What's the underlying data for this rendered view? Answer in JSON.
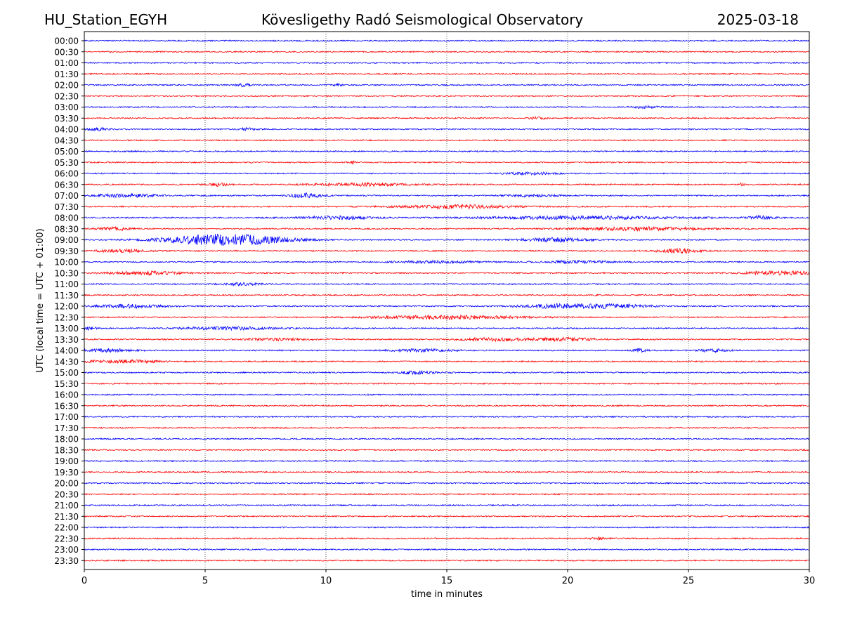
{
  "header": {
    "station": "HU_Station_EGYH",
    "observatory": "Kövesligethy Radó Seismological Observatory",
    "date": "2025-03-18"
  },
  "chart_data": {
    "type": "line",
    "title": "Kövesligethy Radó Seismological Observatory",
    "xlabel": "time in minutes",
    "ylabel": "UTC (local time = UTC + 01:00)",
    "xlim": [
      0,
      30
    ],
    "xticks": [
      0,
      5,
      10,
      15,
      20,
      25,
      30
    ],
    "x_gridlines": [
      5,
      10,
      15,
      20,
      25
    ],
    "grid": "vertical dotted",
    "colors": {
      "even_row": "#0000ff",
      "odd_row": "#ff0000"
    },
    "rows": [
      {
        "label": "00:00",
        "events": []
      },
      {
        "label": "00:30",
        "events": []
      },
      {
        "label": "01:00",
        "events": []
      },
      {
        "label": "01:30",
        "events": []
      },
      {
        "label": "02:00",
        "events": [
          {
            "x": 6.6,
            "amp": 1.6,
            "width": 0.3
          },
          {
            "x": 10.5,
            "amp": 1.3,
            "width": 0.2
          }
        ]
      },
      {
        "label": "02:30",
        "events": []
      },
      {
        "label": "03:00",
        "events": [
          {
            "x": 23.2,
            "amp": 1.4,
            "width": 0.6
          }
        ]
      },
      {
        "label": "03:30",
        "events": [
          {
            "x": 18.7,
            "amp": 1.3,
            "width": 0.4
          }
        ]
      },
      {
        "label": "04:00",
        "events": [
          {
            "x": 0.6,
            "amp": 1.5,
            "width": 0.5
          },
          {
            "x": 6.7,
            "amp": 1.6,
            "width": 0.3
          }
        ]
      },
      {
        "label": "04:30",
        "events": []
      },
      {
        "label": "05:00",
        "events": []
      },
      {
        "label": "05:30",
        "events": [
          {
            "x": 11.1,
            "amp": 2.2,
            "width": 0.1
          }
        ]
      },
      {
        "label": "06:00",
        "events": [
          {
            "x": 18.5,
            "amp": 1.4,
            "width": 1.0
          }
        ]
      },
      {
        "label": "06:30",
        "events": [
          {
            "x": 5.5,
            "amp": 2.0,
            "width": 0.4
          },
          {
            "x": 11.5,
            "amp": 1.8,
            "width": 2.0
          },
          {
            "x": 27.2,
            "amp": 2.0,
            "width": 0.1
          }
        ]
      },
      {
        "label": "07:00",
        "events": [
          {
            "x": 1.8,
            "amp": 2.2,
            "width": 1.4
          },
          {
            "x": 9.2,
            "amp": 3.0,
            "width": 0.7
          },
          {
            "x": 18.5,
            "amp": 1.6,
            "width": 1.0
          }
        ]
      },
      {
        "label": "07:30",
        "events": [
          {
            "x": 15.5,
            "amp": 2.2,
            "width": 2.4
          }
        ]
      },
      {
        "label": "08:00",
        "events": [
          {
            "x": 10.5,
            "amp": 2.2,
            "width": 1.5
          },
          {
            "x": 20.5,
            "amp": 2.0,
            "width": 4.0
          },
          {
            "x": 28.0,
            "amp": 2.2,
            "width": 0.5
          }
        ]
      },
      {
        "label": "08:30",
        "events": [
          {
            "x": 1.2,
            "amp": 2.0,
            "width": 0.7
          },
          {
            "x": 23.0,
            "amp": 2.2,
            "width": 2.5
          }
        ]
      },
      {
        "label": "09:00",
        "events": [
          {
            "x": 5.9,
            "amp": 8.0,
            "width": 2.4
          },
          {
            "x": 19.5,
            "amp": 2.6,
            "width": 1.4
          }
        ]
      },
      {
        "label": "09:30",
        "events": [
          {
            "x": 1.5,
            "amp": 1.8,
            "width": 1.0
          },
          {
            "x": 24.6,
            "amp": 3.0,
            "width": 0.8
          }
        ]
      },
      {
        "label": "10:00",
        "events": [
          {
            "x": 14.5,
            "amp": 1.6,
            "width": 1.5
          },
          {
            "x": 20.5,
            "amp": 1.6,
            "width": 1.5
          }
        ]
      },
      {
        "label": "10:30",
        "events": [
          {
            "x": 2.6,
            "amp": 2.2,
            "width": 1.6
          },
          {
            "x": 28.8,
            "amp": 2.6,
            "width": 1.4
          }
        ]
      },
      {
        "label": "11:00",
        "events": [
          {
            "x": 6.5,
            "amp": 1.6,
            "width": 0.8
          }
        ]
      },
      {
        "label": "11:30",
        "events": []
      },
      {
        "label": "12:00",
        "events": [
          {
            "x": 2.0,
            "amp": 2.2,
            "width": 1.4
          },
          {
            "x": 19.5,
            "amp": 2.6,
            "width": 1.5
          },
          {
            "x": 22.0,
            "amp": 2.4,
            "width": 1.5
          }
        ]
      },
      {
        "label": "12:30",
        "events": [
          {
            "x": 15.0,
            "amp": 2.4,
            "width": 3.0
          }
        ]
      },
      {
        "label": "13:00",
        "events": [
          {
            "x": 6.0,
            "amp": 2.0,
            "width": 2.0
          },
          {
            "x": 0.2,
            "amp": 2.0,
            "width": 0.3
          }
        ]
      },
      {
        "label": "13:30",
        "events": [
          {
            "x": 17.0,
            "amp": 2.0,
            "width": 1.5
          },
          {
            "x": 20.0,
            "amp": 2.2,
            "width": 1.2
          },
          {
            "x": 8.0,
            "amp": 1.6,
            "width": 1.2
          }
        ]
      },
      {
        "label": "14:00",
        "events": [
          {
            "x": 1.0,
            "amp": 1.8,
            "width": 1.0
          },
          {
            "x": 14.0,
            "amp": 1.8,
            "width": 1.2
          },
          {
            "x": 23.0,
            "amp": 2.0,
            "width": 0.3
          },
          {
            "x": 26.0,
            "amp": 2.0,
            "width": 0.6
          }
        ]
      },
      {
        "label": "14:30",
        "events": [
          {
            "x": 1.5,
            "amp": 2.0,
            "width": 1.6
          }
        ]
      },
      {
        "label": "15:00",
        "events": [
          {
            "x": 13.8,
            "amp": 2.0,
            "width": 0.8
          }
        ]
      },
      {
        "label": "15:30",
        "events": []
      },
      {
        "label": "16:00",
        "events": []
      },
      {
        "label": "16:30",
        "events": []
      },
      {
        "label": "17:00",
        "events": []
      },
      {
        "label": "17:30",
        "events": []
      },
      {
        "label": "18:00",
        "events": []
      },
      {
        "label": "18:30",
        "events": []
      },
      {
        "label": "19:00",
        "events": []
      },
      {
        "label": "19:30",
        "events": []
      },
      {
        "label": "20:00",
        "events": []
      },
      {
        "label": "20:30",
        "events": []
      },
      {
        "label": "21:00",
        "events": []
      },
      {
        "label": "21:30",
        "events": []
      },
      {
        "label": "22:00",
        "events": []
      },
      {
        "label": "22:30",
        "events": [
          {
            "x": 21.3,
            "amp": 1.4,
            "width": 0.4
          }
        ]
      },
      {
        "label": "23:00",
        "events": []
      },
      {
        "label": "23:30",
        "events": []
      }
    ]
  }
}
